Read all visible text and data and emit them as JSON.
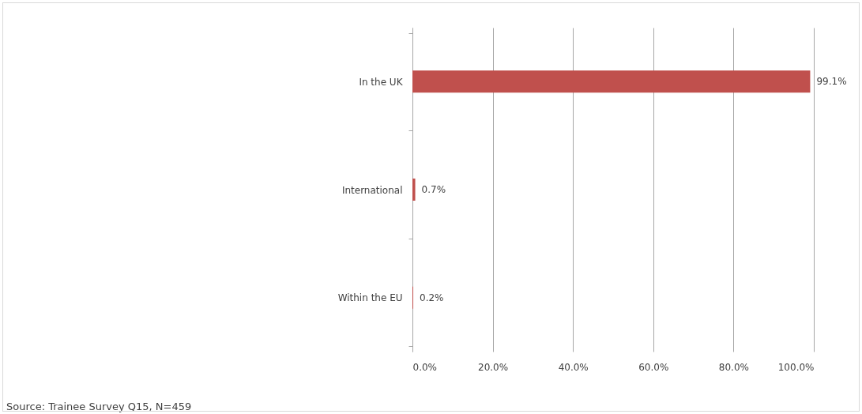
{
  "chart_data": {
    "type": "bar",
    "orientation": "horizontal",
    "categories": [
      "In the UK",
      "International",
      "Within the EU"
    ],
    "values": [
      99.1,
      0.7,
      0.2
    ],
    "value_labels": [
      "99.1%",
      "0.7%",
      "0.2%"
    ],
    "color": "#c0504d",
    "xlim": [
      0,
      100
    ],
    "xticks": [
      {
        "value": 0,
        "label": "0.0%"
      },
      {
        "value": 20,
        "label": "20.0%"
      },
      {
        "value": 40,
        "label": "40.0%"
      },
      {
        "value": 60,
        "label": "60.0%"
      },
      {
        "value": 80,
        "label": "80.0%"
      },
      {
        "value": 100,
        "label": "100.0%"
      }
    ],
    "grid": "x",
    "annotations": [
      "Source: Trainee Survey Q15, N=459"
    ]
  }
}
